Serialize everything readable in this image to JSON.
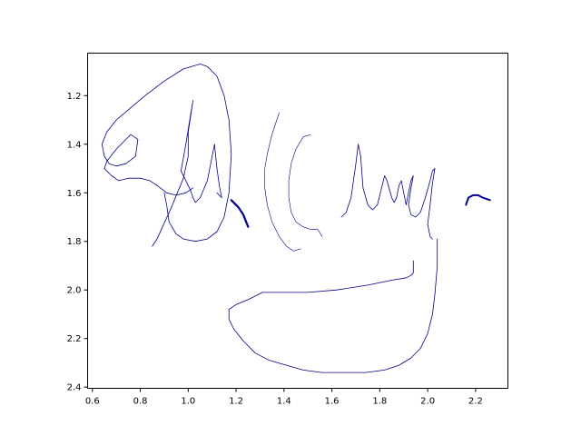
{
  "chart_data": {
    "type": "line",
    "title": "",
    "xlabel": "",
    "ylabel": "",
    "xlim": [
      0.58,
      2.335
    ],
    "ylim": [
      2.405,
      1.025
    ],
    "y_inverted": true,
    "grid": false,
    "legend": "none",
    "x_ticks": [
      0.6,
      0.8,
      1.0,
      1.2,
      1.4,
      1.6,
      1.8,
      2.0,
      2.2
    ],
    "x_tick_labels": [
      "0.6",
      "0.8",
      "1.0",
      "1.2",
      "1.4",
      "1.6",
      "1.8",
      "2.0",
      "2.2"
    ],
    "y_ticks": [
      1.2,
      1.4,
      1.6,
      1.8,
      2.0,
      2.2,
      2.4
    ],
    "y_tick_labels": [
      "1.2",
      "1.4",
      "1.6",
      "1.8",
      "2.0",
      "2.2",
      "2.4"
    ],
    "stroke_color": "#00008b",
    "strokes": [
      {
        "width": 0.8,
        "x": [
          0.85,
          0.87,
          0.93,
          0.98,
          1.0,
          1.0,
          1.02,
          1.01,
          0.99,
          0.97,
          0.99,
          1.01,
          1.02,
          1.03,
          1.05,
          1.08,
          1.11,
          1.12,
          1.13,
          1.14,
          1.12
        ],
        "y": [
          1.82,
          1.79,
          1.66,
          1.54,
          1.45,
          1.35,
          1.22,
          1.28,
          1.4,
          1.51,
          1.55,
          1.59,
          1.62,
          1.64,
          1.62,
          1.55,
          1.4,
          1.5,
          1.57,
          1.62,
          1.6
        ]
      },
      {
        "width": 0.8,
        "x": [
          1.02,
          0.99,
          0.95,
          0.91,
          0.87,
          0.84,
          0.8,
          0.75,
          0.71,
          0.68,
          0.65,
          0.66,
          0.7,
          0.76,
          0.79,
          0.78,
          0.74,
          0.7,
          0.67,
          0.65,
          0.64,
          0.66,
          0.7,
          0.76,
          0.82,
          0.9,
          0.98,
          1.05,
          1.08,
          1.12,
          1.15,
          1.17,
          1.18,
          1.17,
          1.15,
          1.12,
          1.08,
          1.03,
          0.98,
          0.95,
          0.92,
          0.91,
          0.9
        ],
        "y": [
          1.58,
          1.6,
          1.61,
          1.6,
          1.57,
          1.55,
          1.54,
          1.54,
          1.55,
          1.53,
          1.5,
          1.47,
          1.42,
          1.36,
          1.38,
          1.45,
          1.48,
          1.49,
          1.48,
          1.45,
          1.4,
          1.35,
          1.3,
          1.25,
          1.2,
          1.14,
          1.09,
          1.07,
          1.08,
          1.12,
          1.2,
          1.3,
          1.44,
          1.6,
          1.7,
          1.76,
          1.79,
          1.8,
          1.79,
          1.77,
          1.72,
          1.65,
          1.6
        ]
      },
      {
        "width": 2.2,
        "x": [
          1.18,
          1.21,
          1.23,
          1.25
        ],
        "y": [
          1.63,
          1.66,
          1.69,
          1.74
        ]
      },
      {
        "width": 0.6,
        "x": [
          1.38,
          1.37,
          1.35,
          1.33,
          1.32,
          1.32,
          1.33,
          1.35,
          1.38,
          1.41,
          1.44,
          1.47
        ],
        "y": [
          1.27,
          1.3,
          1.36,
          1.44,
          1.5,
          1.58,
          1.65,
          1.72,
          1.78,
          1.82,
          1.84,
          1.83
        ]
      },
      {
        "width": 0.6,
        "x": [
          1.51,
          1.48,
          1.45,
          1.43,
          1.42,
          1.42,
          1.43,
          1.45,
          1.48,
          1.51,
          1.54,
          1.56
        ],
        "y": [
          1.36,
          1.37,
          1.42,
          1.48,
          1.55,
          1.62,
          1.68,
          1.72,
          1.74,
          1.75,
          1.75,
          1.78
        ]
      },
      {
        "width": 0.8,
        "x": [
          1.64,
          1.66,
          1.68,
          1.7,
          1.71,
          1.72,
          1.73,
          1.75,
          1.77,
          1.79,
          1.81,
          1.82,
          1.83,
          1.85,
          1.86,
          1.87,
          1.88,
          1.89,
          1.9,
          1.91,
          1.92,
          1.93,
          1.94,
          1.93,
          1.92,
          1.93,
          1.95,
          1.97,
          1.99,
          2.01,
          2.02,
          2.03,
          2.02,
          2.01,
          2.0,
          2.01,
          2.02
        ],
        "y": [
          1.7,
          1.68,
          1.62,
          1.48,
          1.4,
          1.45,
          1.58,
          1.65,
          1.67,
          1.65,
          1.57,
          1.53,
          1.55,
          1.62,
          1.64,
          1.62,
          1.57,
          1.55,
          1.6,
          1.65,
          1.6,
          1.55,
          1.53,
          1.58,
          1.65,
          1.69,
          1.7,
          1.68,
          1.62,
          1.55,
          1.51,
          1.5,
          1.56,
          1.65,
          1.73,
          1.78,
          1.79
        ]
      },
      {
        "width": 0.8,
        "x": [
          2.04,
          2.04,
          2.03,
          2.02,
          2.0,
          1.97,
          1.93,
          1.88,
          1.82,
          1.74,
          1.65,
          1.56,
          1.48,
          1.41,
          1.34,
          1.28,
          1.23,
          1.19,
          1.17,
          1.17,
          1.2,
          1.25,
          1.31,
          1.4,
          1.5,
          1.62,
          1.75,
          1.85,
          1.91,
          1.93,
          1.94,
          1.94
        ],
        "y": [
          1.79,
          1.9,
          2.02,
          2.1,
          2.18,
          2.24,
          2.28,
          2.31,
          2.33,
          2.34,
          2.34,
          2.34,
          2.33,
          2.31,
          2.29,
          2.26,
          2.21,
          2.16,
          2.12,
          2.08,
          2.06,
          2.04,
          2.01,
          2.01,
          2.01,
          2.0,
          1.98,
          1.96,
          1.95,
          1.94,
          1.93,
          1.88
        ]
      },
      {
        "width": 2.0,
        "x": [
          2.16,
          2.17,
          2.19,
          2.21,
          2.23,
          2.26
        ],
        "y": [
          1.65,
          1.62,
          1.61,
          1.61,
          1.62,
          1.63
        ]
      }
    ]
  }
}
